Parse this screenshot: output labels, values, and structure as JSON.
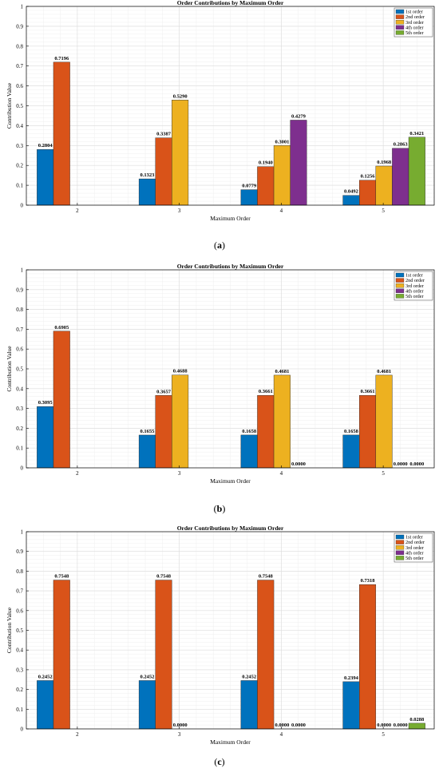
{
  "colors": {
    "series": [
      "#0072BD",
      "#D95319",
      "#EDB120",
      "#7E2F8E",
      "#77AC30"
    ],
    "grid_major": "#dcdcdc",
    "grid_minor": "#efefef",
    "axis": "#000000"
  },
  "chart_data": [
    {
      "type": "bar",
      "panel_label": "a",
      "title": "Order Contributions by Maximum Order",
      "xlabel": "Maximum Order",
      "ylabel": "Contribution Value",
      "ylim": [
        0,
        1
      ],
      "yticks": [
        "0",
        "0.1",
        "0.2",
        "0.3",
        "0.4",
        "0.5",
        "0.6",
        "0.7",
        "0.8",
        "0.9",
        "1"
      ],
      "categories": [
        "2",
        "3",
        "4",
        "5"
      ],
      "grid": true,
      "legend_position": "top-right",
      "series": [
        {
          "name": "1st order",
          "values": [
            0.2804,
            0.1323,
            0.0779,
            0.0492
          ],
          "labels": [
            "0.2804",
            "0.1323",
            "0.0779",
            "0.0492"
          ]
        },
        {
          "name": "2nd order",
          "values": [
            0.7196,
            0.3387,
            0.194,
            0.1256
          ],
          "labels": [
            "0.7196",
            "0.3387",
            "0.1940",
            "0.1256"
          ]
        },
        {
          "name": "3rd order",
          "values": [
            null,
            0.529,
            0.3001,
            0.1968
          ],
          "labels": [
            null,
            "0.5290",
            "0.3001",
            "0.1968"
          ]
        },
        {
          "name": "4th order",
          "values": [
            null,
            null,
            0.4279,
            0.2863
          ],
          "labels": [
            null,
            null,
            "0.4279",
            "0.2863"
          ]
        },
        {
          "name": "5th order",
          "values": [
            null,
            null,
            null,
            0.3421
          ],
          "labels": [
            null,
            null,
            null,
            "0.3421"
          ]
        }
      ]
    },
    {
      "type": "bar",
      "panel_label": "b",
      "title": "Order Contributions by Maximum Order",
      "xlabel": "Maximum Order",
      "ylabel": "Contribution Value",
      "ylim": [
        0,
        1
      ],
      "yticks": [
        "0",
        "0.1",
        "0.2",
        "0.3",
        "0.4",
        "0.5",
        "0.6",
        "0.7",
        "0.8",
        "0.9",
        "1"
      ],
      "categories": [
        "2",
        "3",
        "4",
        "5"
      ],
      "grid": true,
      "legend_position": "top-right",
      "series": [
        {
          "name": "1st order",
          "values": [
            0.3095,
            0.1655,
            0.1658,
            0.1658
          ],
          "labels": [
            "0.3095",
            "0.1655",
            "0.1658",
            "0.1658"
          ]
        },
        {
          "name": "2nd order",
          "values": [
            0.6905,
            0.3657,
            0.3661,
            0.3661
          ],
          "labels": [
            "0.6905",
            "0.3657",
            "0.3661",
            "0.3661"
          ]
        },
        {
          "name": "3rd order",
          "values": [
            null,
            0.4688,
            0.4681,
            0.4681
          ],
          "labels": [
            null,
            "0.4688",
            "0.4681",
            "0.4681"
          ]
        },
        {
          "name": "4th order",
          "values": [
            null,
            null,
            0.0,
            0.0
          ],
          "labels": [
            null,
            null,
            "0.0000",
            "0.0000"
          ]
        },
        {
          "name": "5th order",
          "values": [
            null,
            null,
            null,
            0.0
          ],
          "labels": [
            null,
            null,
            null,
            "0.0000"
          ]
        }
      ]
    },
    {
      "type": "bar",
      "panel_label": "c",
      "title": "Order Contributions by Maximum Order",
      "xlabel": "Maximum Order",
      "ylabel": "Contribution Value",
      "ylim": [
        0,
        1
      ],
      "yticks": [
        "0",
        "0.1",
        "0.2",
        "0.3",
        "0.4",
        "0.5",
        "0.6",
        "0.7",
        "0.8",
        "0.9",
        "1"
      ],
      "categories": [
        "2",
        "3",
        "4",
        "5"
      ],
      "grid": true,
      "legend_position": "top-right",
      "series": [
        {
          "name": "1st order",
          "values": [
            0.2452,
            0.2452,
            0.2452,
            0.2394
          ],
          "labels": [
            "0.2452",
            "0.2452",
            "0.2452",
            "0.2394"
          ]
        },
        {
          "name": "2nd order",
          "values": [
            0.7548,
            0.7548,
            0.7548,
            0.7318
          ],
          "labels": [
            "0.7548",
            "0.7548",
            "0.7548",
            "0.7318"
          ]
        },
        {
          "name": "3rd order",
          "values": [
            null,
            0.0,
            0.0,
            0.0
          ],
          "labels": [
            null,
            "0.0000",
            "0.0000",
            "0.0000"
          ]
        },
        {
          "name": "4th order",
          "values": [
            null,
            null,
            0.0,
            0.0
          ],
          "labels": [
            null,
            null,
            "0.0000",
            "0.0000"
          ]
        },
        {
          "name": "5th order",
          "values": [
            null,
            null,
            null,
            0.0288
          ],
          "labels": [
            null,
            null,
            null,
            "0.0288"
          ]
        }
      ]
    }
  ]
}
